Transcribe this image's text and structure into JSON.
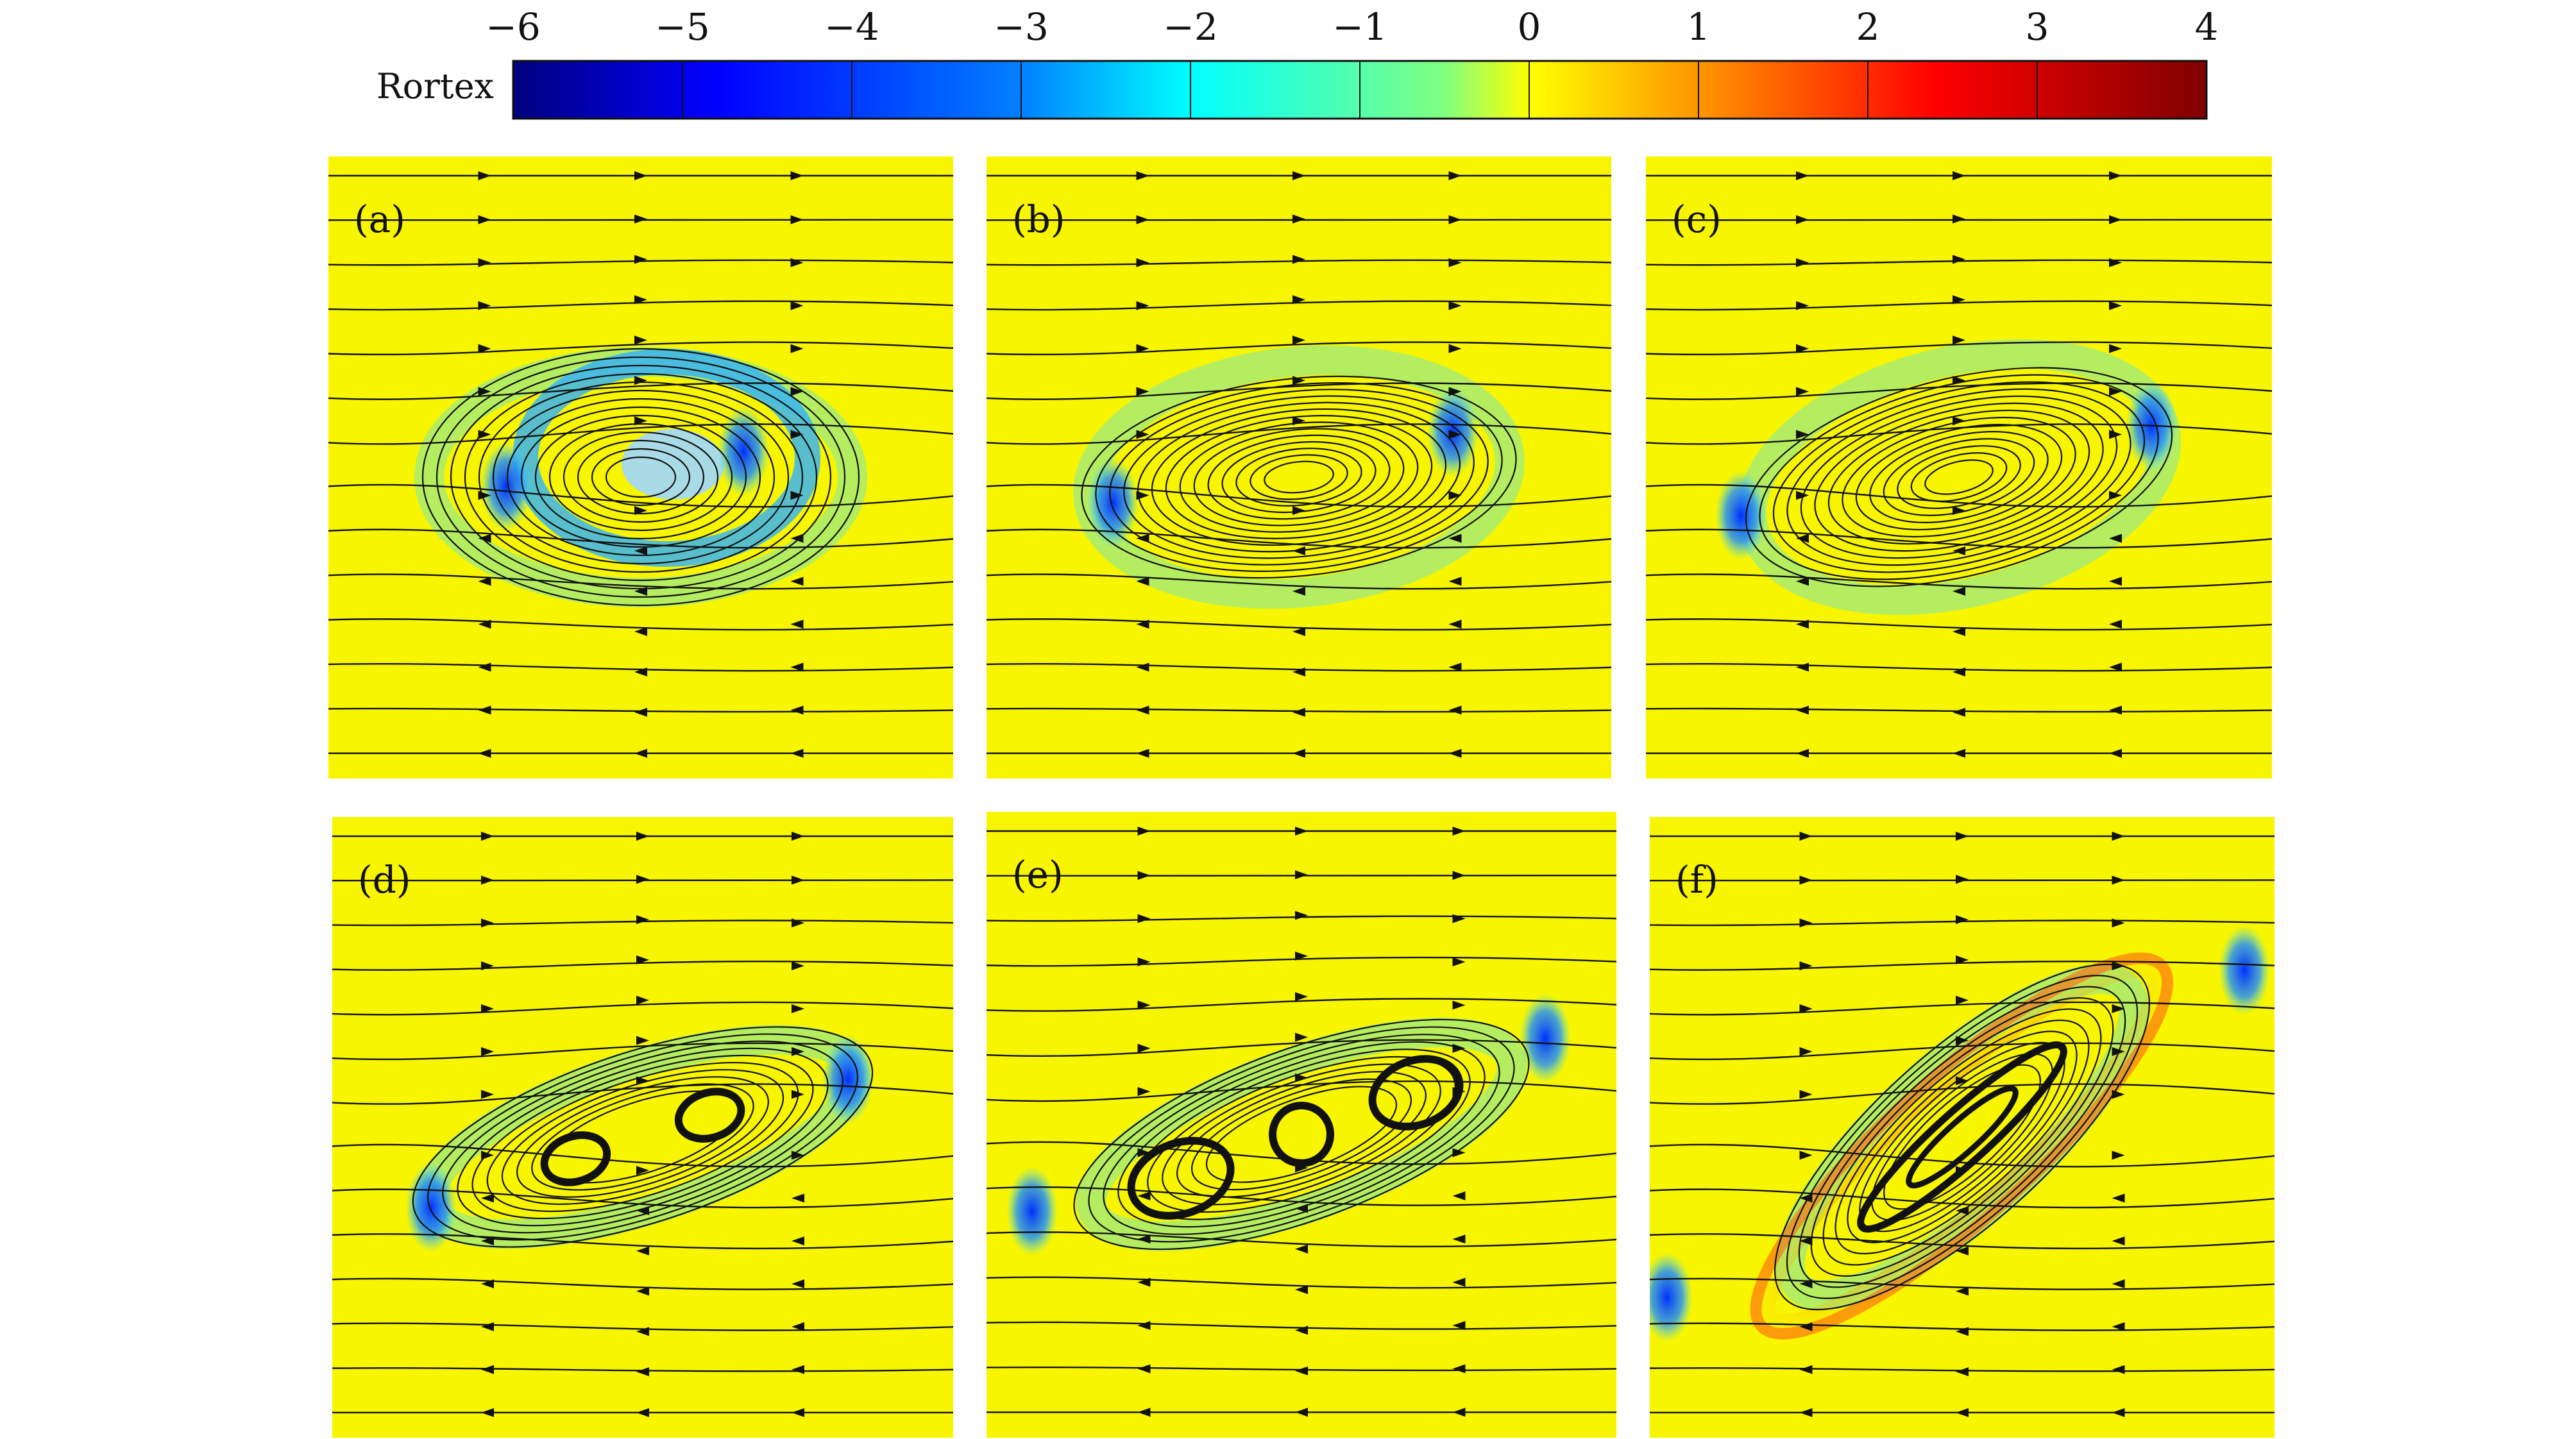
{
  "colorbar": {
    "title": "Rortex",
    "ticks": [
      "−6",
      "−5",
      "−4",
      "−3",
      "−2",
      "−1",
      "0",
      "1",
      "2",
      "3",
      "4"
    ],
    "range": [
      -6,
      4
    ],
    "colormap": "jet",
    "colors": [
      "#000080",
      "#0000ff",
      "#0080ff",
      "#00ffff",
      "#80ff80",
      "#ffff00",
      "#ff8000",
      "#ff0000",
      "#800000"
    ]
  },
  "panels": [
    {
      "label": "(a)",
      "background": "#f8f500"
    },
    {
      "label": "(b)",
      "background": "#f8f500"
    },
    {
      "label": "(c)",
      "background": "#f8f500"
    },
    {
      "label": "(d)",
      "background": "#f8f500"
    },
    {
      "label": "(e)",
      "background": "#f8f500"
    },
    {
      "label": "(f)",
      "background": "#f8f500"
    }
  ]
}
